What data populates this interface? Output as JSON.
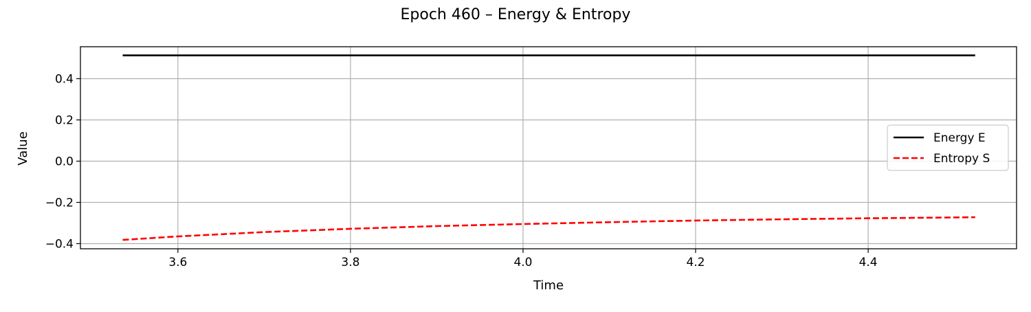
{
  "chart_data": {
    "type": "line",
    "title": "Epoch 460 – Energy & Entropy",
    "xlabel": "Time",
    "ylabel": "Value",
    "xlim": [
      3.487,
      4.572
    ],
    "ylim": [
      -0.425,
      0.555
    ],
    "xticks": [
      3.6,
      3.8,
      4.0,
      4.2,
      4.4
    ],
    "xtick_labels": [
      "3.6",
      "3.8",
      "4.0",
      "4.2",
      "4.4"
    ],
    "yticks": [
      -0.4,
      -0.2,
      0.0,
      0.2,
      0.4
    ],
    "ytick_labels": [
      "−0.4",
      "−0.2",
      "0.0",
      "0.2",
      "0.4"
    ],
    "grid": true,
    "legend_position": "center-right",
    "series": [
      {
        "name": "Energy E",
        "color": "#000000",
        "style": "solid",
        "x": [
          3.536,
          4.524
        ],
        "y": [
          0.513,
          0.513
        ]
      },
      {
        "name": "Entropy S",
        "color": "#ff0000",
        "style": "dashed",
        "x": [
          3.536,
          3.6,
          3.7,
          3.8,
          3.9,
          4.0,
          4.1,
          4.2,
          4.3,
          4.4,
          4.524
        ],
        "y": [
          -0.382,
          -0.365,
          -0.344,
          -0.328,
          -0.315,
          -0.305,
          -0.296,
          -0.288,
          -0.282,
          -0.277,
          -0.272
        ]
      }
    ]
  }
}
